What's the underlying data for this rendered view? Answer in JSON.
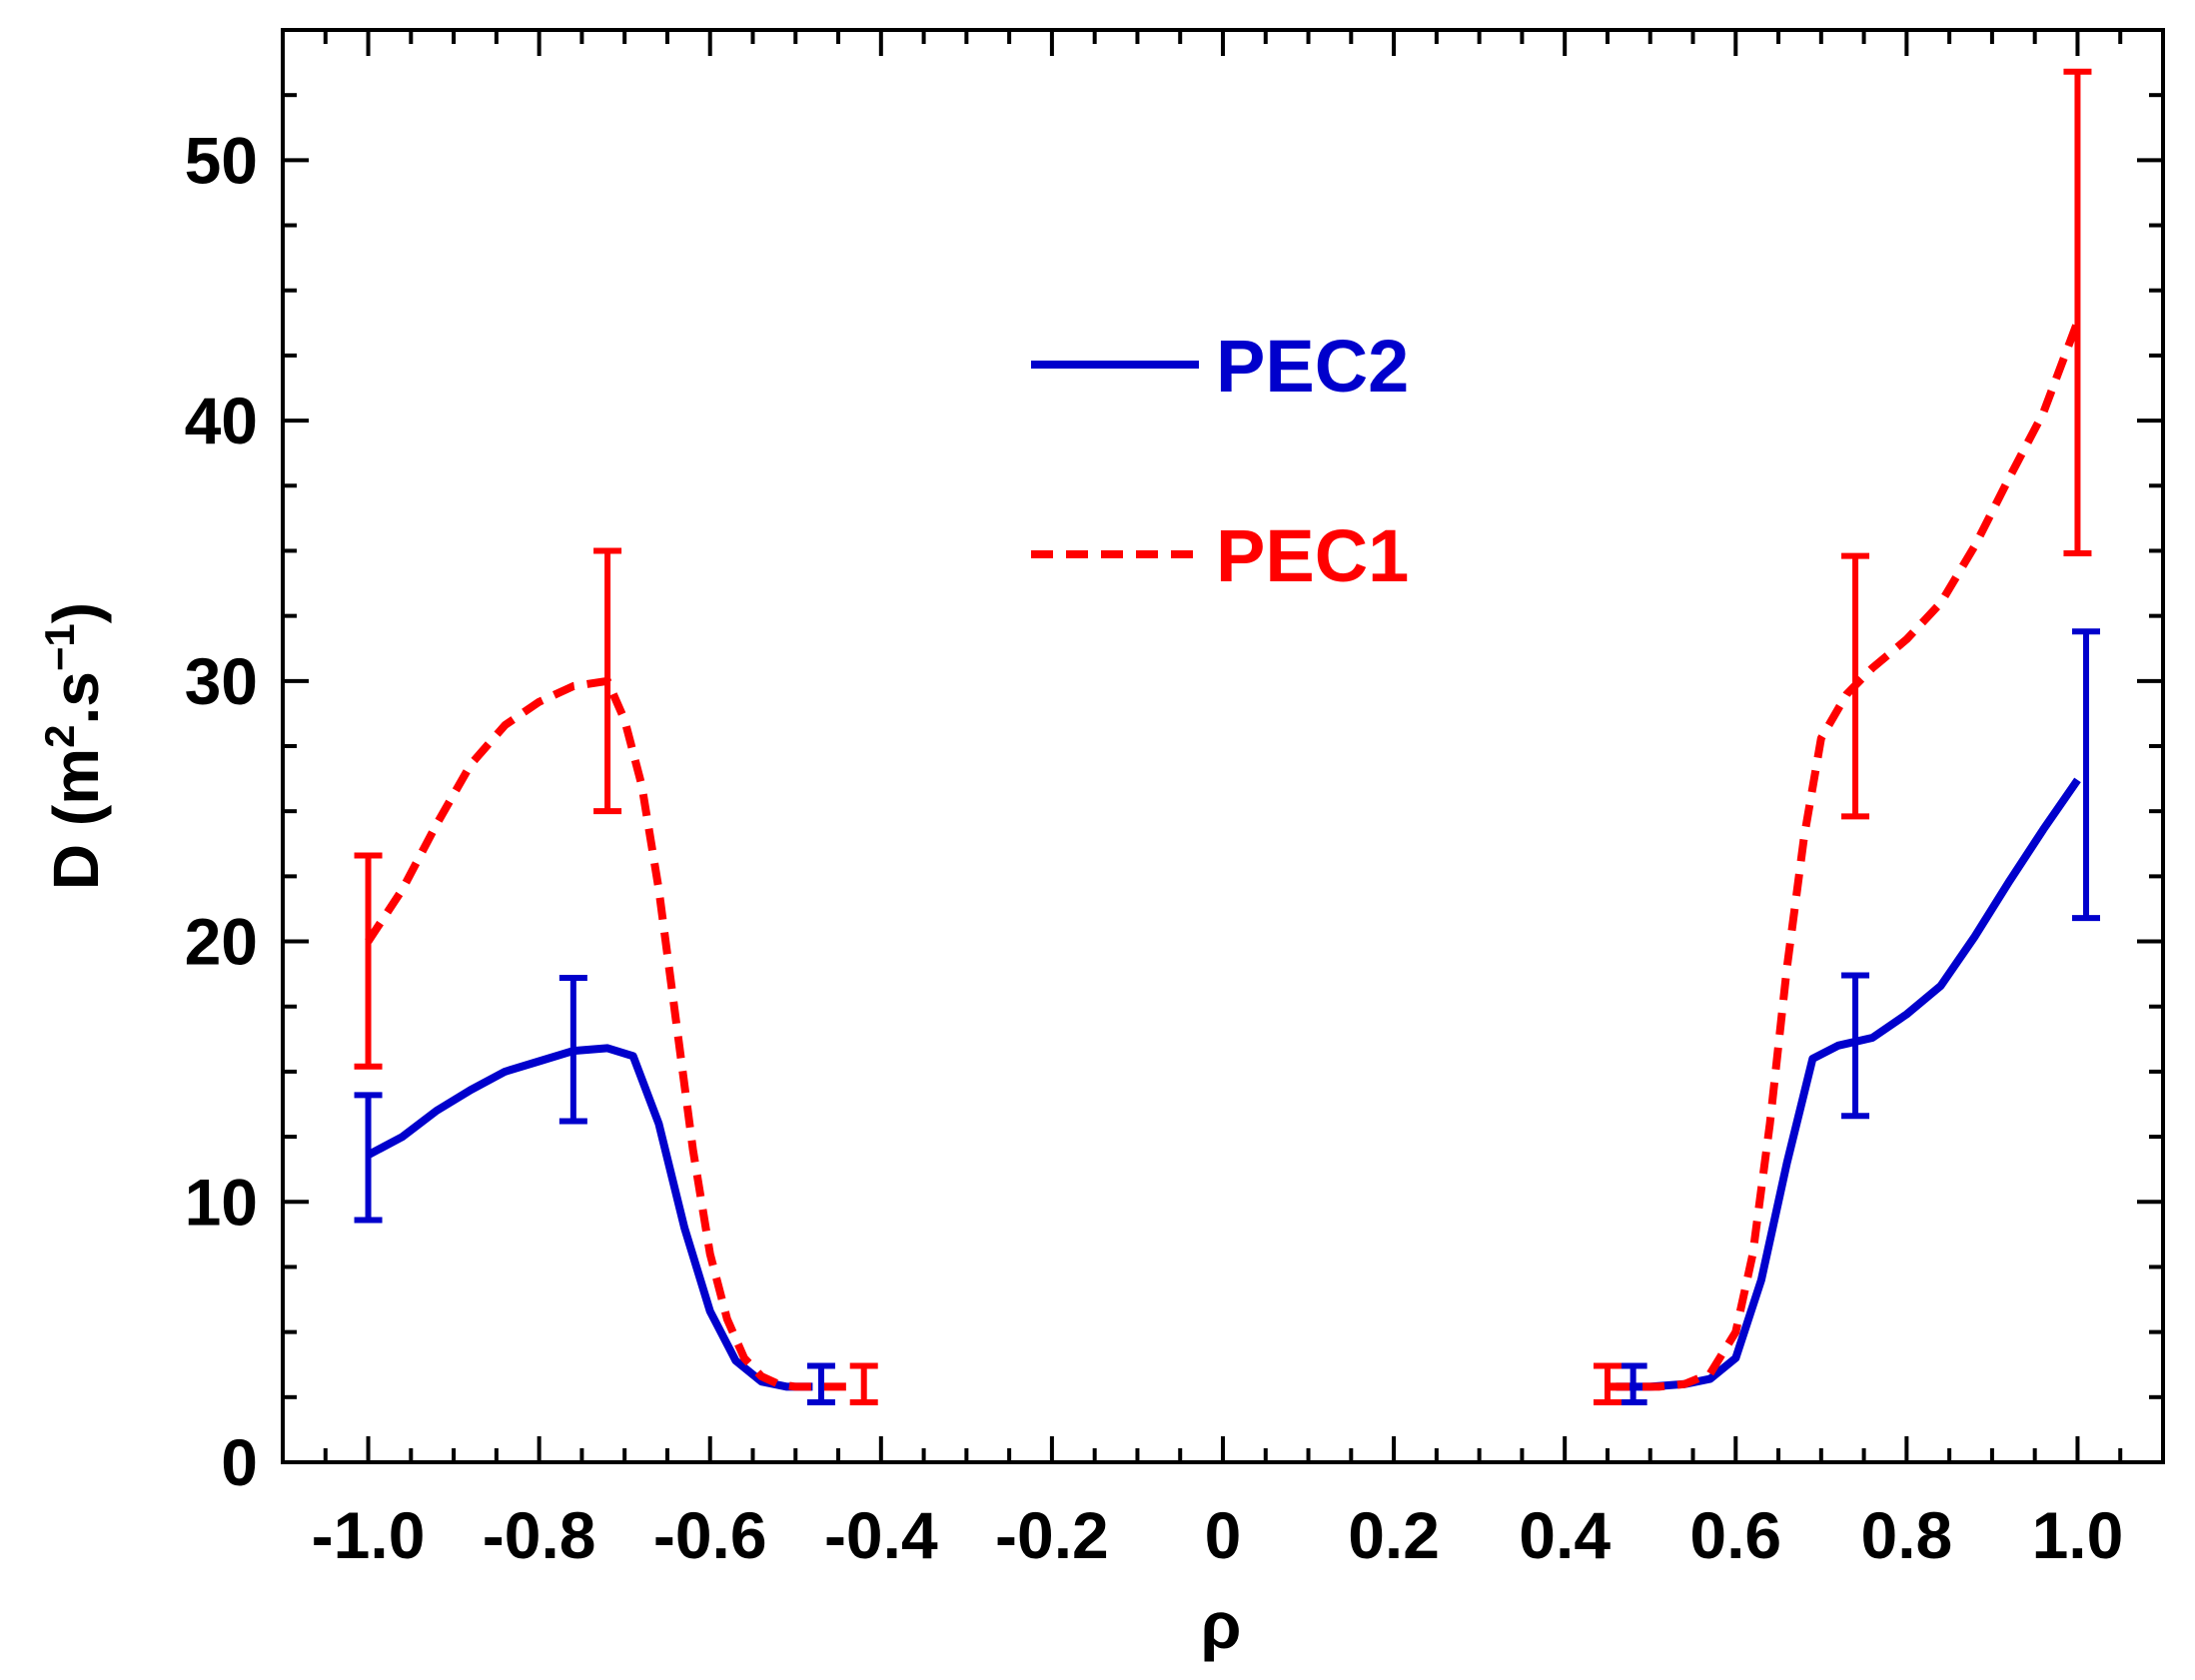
{
  "chart_data": {
    "type": "line",
    "title": "",
    "xlabel": "ρ",
    "ylabel": {
      "base": "D (m",
      "sup1": "2",
      "mid": ".s",
      "sup2": "−1",
      "end": ")"
    },
    "xlim": [
      -1.1,
      1.1
    ],
    "ylim": [
      0,
      55
    ],
    "xticks": [
      -1.0,
      -0.8,
      -0.6,
      -0.4,
      -0.2,
      0,
      0.2,
      0.4,
      0.6,
      0.8,
      1.0
    ],
    "xtick_labels": [
      "-1.0",
      "-0.8",
      "-0.6",
      "-0.4",
      "-0.2",
      "0",
      "0.2",
      "0.4",
      "0.6",
      "0.8",
      "1.0"
    ],
    "yticks": [
      0,
      10,
      20,
      30,
      40,
      50
    ],
    "ytick_labels": [
      "0",
      "10",
      "20",
      "30",
      "40",
      "50"
    ],
    "grid": false,
    "legend_position": "upper-center",
    "series": [
      {
        "name": "PEC2",
        "color": "#0000cc",
        "style": "solid",
        "segments": [
          {
            "x": [
              -1.0,
              -0.96,
              -0.92,
              -0.88,
              -0.84,
              -0.8,
              -0.76,
              -0.72,
              -0.69,
              -0.66,
              -0.63,
              -0.6,
              -0.57,
              -0.54,
              -0.51,
              -0.48
            ],
            "y": [
              11.8,
              12.5,
              13.5,
              14.3,
              15.0,
              15.4,
              15.8,
              15.9,
              15.6,
              13.0,
              9.0,
              5.8,
              3.9,
              3.1,
              2.9,
              2.9
            ]
          },
          {
            "x": [
              0.46,
              0.5,
              0.54,
              0.57,
              0.6,
              0.63,
              0.66,
              0.69,
              0.72,
              0.76,
              0.8,
              0.84,
              0.88,
              0.92,
              0.96,
              1.0
            ],
            "y": [
              2.9,
              2.9,
              3.0,
              3.2,
              4.0,
              7.0,
              11.5,
              15.5,
              16.0,
              16.3,
              17.2,
              18.3,
              20.2,
              22.3,
              24.3,
              26.2
            ]
          }
        ],
        "errorbars": [
          {
            "x": -1.0,
            "y": 11.8,
            "lo": 9.3,
            "hi": 14.1
          },
          {
            "x": -0.76,
            "y": 15.8,
            "lo": 13.1,
            "hi": 18.6
          },
          {
            "x": -0.47,
            "y": 2.9,
            "lo": 2.3,
            "hi": 3.7
          },
          {
            "x": 0.48,
            "y": 2.9,
            "lo": 2.3,
            "hi": 3.7
          },
          {
            "x": 0.74,
            "y": 16.0,
            "lo": 13.3,
            "hi": 18.7
          },
          {
            "x": 1.01,
            "y": 26.3,
            "lo": 20.9,
            "hi": 31.9
          }
        ]
      },
      {
        "name": "PEC1",
        "color": "#ff0000",
        "style": "dashed",
        "segments": [
          {
            "x": [
              -1.0,
              -0.96,
              -0.92,
              -0.88,
              -0.84,
              -0.8,
              -0.76,
              -0.72,
              -0.7,
              -0.68,
              -0.66,
              -0.64,
              -0.62,
              -0.6,
              -0.58,
              -0.56,
              -0.54,
              -0.52,
              -0.5,
              -0.48,
              -0.46,
              -0.44
            ],
            "y": [
              20.0,
              22.0,
              24.5,
              26.8,
              28.3,
              29.2,
              29.8,
              30.0,
              28.5,
              26.0,
              22.0,
              17.0,
              12.0,
              8.0,
              5.5,
              4.0,
              3.3,
              3.0,
              2.9,
              2.9,
              2.9,
              2.9
            ]
          },
          {
            "x": [
              0.45,
              0.48,
              0.51,
              0.54,
              0.57,
              0.6,
              0.62,
              0.64,
              0.66,
              0.68,
              0.7,
              0.73,
              0.76,
              0.8,
              0.84,
              0.88,
              0.92,
              0.96,
              1.0
            ],
            "y": [
              2.9,
              2.9,
              2.9,
              3.0,
              3.4,
              5.0,
              8.0,
              13.0,
              19.0,
              24.0,
              27.8,
              29.5,
              30.5,
              31.6,
              33.0,
              35.2,
              37.8,
              40.3,
              43.8
            ]
          }
        ],
        "errorbars": [
          {
            "x": -1.0,
            "y": 20.0,
            "lo": 15.2,
            "hi": 23.3
          },
          {
            "x": -0.72,
            "y": 30.0,
            "lo": 25.0,
            "hi": 35.0
          },
          {
            "x": -0.42,
            "y": 2.9,
            "lo": 2.3,
            "hi": 3.7
          },
          {
            "x": 0.45,
            "y": 2.9,
            "lo": 2.3,
            "hi": 3.7
          },
          {
            "x": 0.74,
            "y": 30.0,
            "lo": 24.8,
            "hi": 34.8
          },
          {
            "x": 1.0,
            "y": 44.0,
            "lo": 34.9,
            "hi": 53.4
          }
        ]
      }
    ]
  }
}
